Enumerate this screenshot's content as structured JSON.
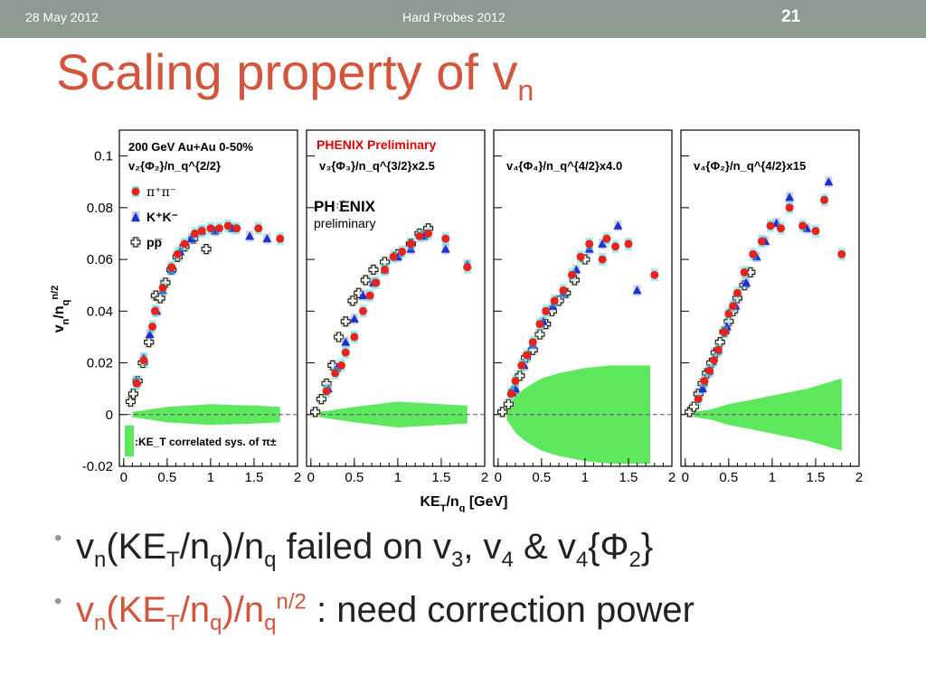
{
  "header": {
    "date": "28 May 2012",
    "conference": "Hard Probes 2012",
    "page": "21"
  },
  "title": {
    "main": "Scaling property of v",
    "sub": "n"
  },
  "bullets": {
    "b1": {
      "v": "v",
      "n1": "n",
      "ket": "(KE",
      "t": "T",
      "slashnq": "/n",
      "q1": "q",
      "close": ")/n",
      "q2": "q",
      "rest": " failed on v",
      "n3": "3",
      "comma": ", v",
      "n4": "4",
      "amp": " & v",
      "n44": "4",
      "brace": "{Φ",
      "n2": "2",
      "end": "}"
    },
    "b2": {
      "v": "v",
      "n1": "n",
      "ket": "(KE",
      "t": "T",
      "slashnq": "/n",
      "q1": "q",
      "close": ")/n",
      "q2": "q",
      "pow": "n/2",
      "rest": " : need correction power"
    }
  },
  "chart_data": {
    "type": "scatter",
    "xlabel": "KE_T/n_q [GeV]",
    "ylabel": "v_n/n_q^{n/2}",
    "xlim": [
      -0.05,
      2.0
    ],
    "ylim": [
      -0.02,
      0.11
    ],
    "xticks": [
      "0",
      "0.5",
      "1",
      "1.5",
      "2"
    ],
    "yticks": [
      {
        "v": 0.1,
        "label": "0.1"
      },
      {
        "v": 0.08,
        "label": "0.08"
      },
      {
        "v": 0.06,
        "label": "0.06"
      },
      {
        "v": 0.04,
        "label": "0.04"
      },
      {
        "v": 0.02,
        "label": "0.02"
      },
      {
        "v": 0,
        "label": "0"
      },
      {
        "v": -0.02,
        "label": "-0.02"
      }
    ],
    "colors": {
      "pion": "#e8231c",
      "kaon": "#1b2fd6",
      "proton": "#222222",
      "band": "#5ee85e",
      "sys_pi": "#33d6dd",
      "sys_k": "#9ca8c8",
      "sys_p": "#c9b98a"
    },
    "legend": {
      "pion": "π⁺π⁻",
      "kaon": "K⁺K⁻",
      "proton": "pp̅",
      "band": ":KE_T correlated sys. of π±"
    },
    "annotations": {
      "system": "200 GeV Au+Au 0-50%",
      "prelim": "PHENIX Preliminary",
      "logo_main": "PH  ENIX",
      "logo_sub": "preliminary"
    },
    "panels": [
      {
        "label": "v₂{Φ₂}/n_q^{2/2}",
        "band_halfwidth": [
          [
            0.1,
            0.001
          ],
          [
            0.5,
            0.003
          ],
          [
            1.0,
            0.004
          ],
          [
            1.5,
            0.0035
          ],
          [
            1.8,
            0.003
          ]
        ],
        "pion": [
          [
            0.15,
            0.012
          ],
          [
            0.23,
            0.021
          ],
          [
            0.33,
            0.034
          ],
          [
            0.36,
            0.04
          ],
          [
            0.45,
            0.049
          ],
          [
            0.55,
            0.057
          ],
          [
            0.62,
            0.062
          ],
          [
            0.7,
            0.066
          ],
          [
            0.82,
            0.07
          ],
          [
            0.9,
            0.071
          ],
          [
            1.0,
            0.072
          ],
          [
            1.1,
            0.072
          ],
          [
            1.2,
            0.073
          ],
          [
            1.3,
            0.072
          ],
          [
            1.55,
            0.072
          ],
          [
            1.8,
            0.068
          ]
        ],
        "kaon": [
          [
            0.15,
            0.013
          ],
          [
            0.23,
            0.022
          ],
          [
            0.3,
            0.031
          ],
          [
            0.38,
            0.04
          ],
          [
            0.45,
            0.048
          ],
          [
            0.55,
            0.056
          ],
          [
            0.65,
            0.063
          ],
          [
            0.78,
            0.068
          ],
          [
            0.9,
            0.071
          ],
          [
            1.05,
            0.071
          ],
          [
            1.25,
            0.072
          ],
          [
            1.45,
            0.069
          ],
          [
            1.65,
            0.068
          ]
        ],
        "proton": [
          [
            0.08,
            0.005
          ],
          [
            0.11,
            0.008
          ],
          [
            0.16,
            0.013
          ],
          [
            0.22,
            0.02
          ],
          [
            0.29,
            0.028
          ],
          [
            0.37,
            0.046
          ],
          [
            0.42,
            0.045
          ],
          [
            0.48,
            0.051
          ],
          [
            0.55,
            0.056
          ],
          [
            0.62,
            0.061
          ],
          [
            0.7,
            0.065
          ],
          [
            0.8,
            0.068
          ],
          [
            0.95,
            0.064
          ]
        ]
      },
      {
        "label": "v₃{Φ₃}/n_q^{3/2}x2.5",
        "band_halfwidth": [
          [
            0.1,
            0.001
          ],
          [
            0.5,
            0.003
          ],
          [
            1.0,
            0.005
          ],
          [
            1.5,
            0.004
          ],
          [
            1.8,
            0.0035
          ]
        ],
        "pion": [
          [
            0.18,
            0.009
          ],
          [
            0.28,
            0.016
          ],
          [
            0.35,
            0.019
          ],
          [
            0.4,
            0.024
          ],
          [
            0.5,
            0.03
          ],
          [
            0.6,
            0.04
          ],
          [
            0.68,
            0.046
          ],
          [
            0.75,
            0.051
          ],
          [
            0.85,
            0.056
          ],
          [
            0.95,
            0.061
          ],
          [
            1.05,
            0.063
          ],
          [
            1.15,
            0.066
          ],
          [
            1.25,
            0.069
          ],
          [
            1.35,
            0.07
          ],
          [
            1.55,
            0.068
          ],
          [
            1.8,
            0.057
          ]
        ],
        "kaon": [
          [
            0.2,
            0.01
          ],
          [
            0.3,
            0.018
          ],
          [
            0.4,
            0.028
          ],
          [
            0.5,
            0.037
          ],
          [
            0.6,
            0.046
          ],
          [
            0.72,
            0.051
          ],
          [
            0.85,
            0.056
          ],
          [
            1.0,
            0.061
          ],
          [
            1.15,
            0.064
          ],
          [
            1.3,
            0.069
          ],
          [
            1.55,
            0.064
          ],
          [
            1.8,
            0.058
          ]
        ],
        "proton": [
          [
            0.05,
            0.001
          ],
          [
            0.12,
            0.006
          ],
          [
            0.18,
            0.012
          ],
          [
            0.25,
            0.019
          ],
          [
            0.32,
            0.03
          ],
          [
            0.4,
            0.036
          ],
          [
            0.48,
            0.044
          ],
          [
            0.55,
            0.047
          ],
          [
            0.63,
            0.052
          ],
          [
            0.72,
            0.056
          ],
          [
            0.85,
            0.059
          ],
          [
            1.0,
            0.062
          ],
          [
            1.15,
            0.066
          ],
          [
            1.25,
            0.07
          ],
          [
            1.35,
            0.072
          ]
        ]
      },
      {
        "label": "v₄{Φ₄}/n_q^{4/2}x4.0",
        "band_halfwidth": [
          [
            0.1,
            0.002
          ],
          [
            0.2,
            0.007
          ],
          [
            0.3,
            0.01
          ],
          [
            0.4,
            0.012
          ],
          [
            0.5,
            0.014
          ],
          [
            0.7,
            0.016
          ],
          [
            1.0,
            0.018
          ],
          [
            1.3,
            0.019
          ],
          [
            1.75,
            0.019
          ]
        ],
        "pion": [
          [
            0.15,
            0.008
          ],
          [
            0.2,
            0.013
          ],
          [
            0.27,
            0.019
          ],
          [
            0.33,
            0.023
          ],
          [
            0.4,
            0.028
          ],
          [
            0.48,
            0.035
          ],
          [
            0.55,
            0.04
          ],
          [
            0.65,
            0.044
          ],
          [
            0.75,
            0.048
          ],
          [
            0.85,
            0.054
          ],
          [
            0.95,
            0.061
          ],
          [
            1.05,
            0.066
          ],
          [
            1.2,
            0.06
          ],
          [
            1.25,
            0.068
          ],
          [
            1.35,
            0.065
          ],
          [
            1.5,
            0.066
          ],
          [
            1.8,
            0.054
          ]
        ],
        "kaon": [
          [
            0.2,
            0.01
          ],
          [
            0.3,
            0.019
          ],
          [
            0.4,
            0.027
          ],
          [
            0.52,
            0.036
          ],
          [
            0.63,
            0.042
          ],
          [
            0.75,
            0.047
          ],
          [
            0.9,
            0.056
          ],
          [
            1.05,
            0.064
          ],
          [
            1.2,
            0.066
          ],
          [
            1.38,
            0.073
          ],
          [
            1.6,
            0.048
          ]
        ],
        "proton": [
          [
            0.05,
            0.001
          ],
          [
            0.12,
            0.004
          ],
          [
            0.18,
            0.009
          ],
          [
            0.25,
            0.015
          ],
          [
            0.32,
            0.022
          ],
          [
            0.4,
            0.025
          ],
          [
            0.48,
            0.031
          ],
          [
            0.55,
            0.035
          ],
          [
            0.62,
            0.04
          ],
          [
            0.7,
            0.044
          ],
          [
            0.78,
            0.047
          ],
          [
            0.88,
            0.052
          ],
          [
            1.0,
            0.06
          ]
        ]
      },
      {
        "label": "v₄{Φ₂}/n_q^{4/2}x15",
        "band_halfwidth": [
          [
            0.1,
            0.001
          ],
          [
            0.3,
            0.002
          ],
          [
            0.5,
            0.004
          ],
          [
            0.8,
            0.006
          ],
          [
            1.1,
            0.008
          ],
          [
            1.4,
            0.01
          ],
          [
            1.7,
            0.013
          ],
          [
            1.8,
            0.014
          ]
        ],
        "pion": [
          [
            0.15,
            0.006
          ],
          [
            0.22,
            0.013
          ],
          [
            0.28,
            0.017
          ],
          [
            0.33,
            0.021
          ],
          [
            0.38,
            0.025
          ],
          [
            0.45,
            0.032
          ],
          [
            0.5,
            0.039
          ],
          [
            0.55,
            0.042
          ],
          [
            0.6,
            0.047
          ],
          [
            0.68,
            0.055
          ],
          [
            0.78,
            0.062
          ],
          [
            0.88,
            0.067
          ],
          [
            0.98,
            0.073
          ],
          [
            1.1,
            0.072
          ],
          [
            1.2,
            0.08
          ],
          [
            1.35,
            0.073
          ],
          [
            1.5,
            0.071
          ],
          [
            1.6,
            0.083
          ],
          [
            1.8,
            0.062
          ]
        ],
        "kaon": [
          [
            0.2,
            0.01
          ],
          [
            0.28,
            0.017
          ],
          [
            0.38,
            0.025
          ],
          [
            0.48,
            0.034
          ],
          [
            0.58,
            0.042
          ],
          [
            0.7,
            0.051
          ],
          [
            0.82,
            0.061
          ],
          [
            0.92,
            0.067
          ],
          [
            1.05,
            0.074
          ],
          [
            1.2,
            0.084
          ],
          [
            1.4,
            0.072
          ],
          [
            1.65,
            0.09
          ]
        ],
        "proton": [
          [
            0.05,
            0.001
          ],
          [
            0.1,
            0.003
          ],
          [
            0.15,
            0.008
          ],
          [
            0.2,
            0.012
          ],
          [
            0.25,
            0.016
          ],
          [
            0.3,
            0.02
          ],
          [
            0.35,
            0.024
          ],
          [
            0.4,
            0.028
          ],
          [
            0.45,
            0.032
          ],
          [
            0.5,
            0.036
          ],
          [
            0.55,
            0.04
          ],
          [
            0.6,
            0.045
          ],
          [
            0.68,
            0.05
          ],
          [
            0.75,
            0.055
          ]
        ]
      }
    ]
  }
}
